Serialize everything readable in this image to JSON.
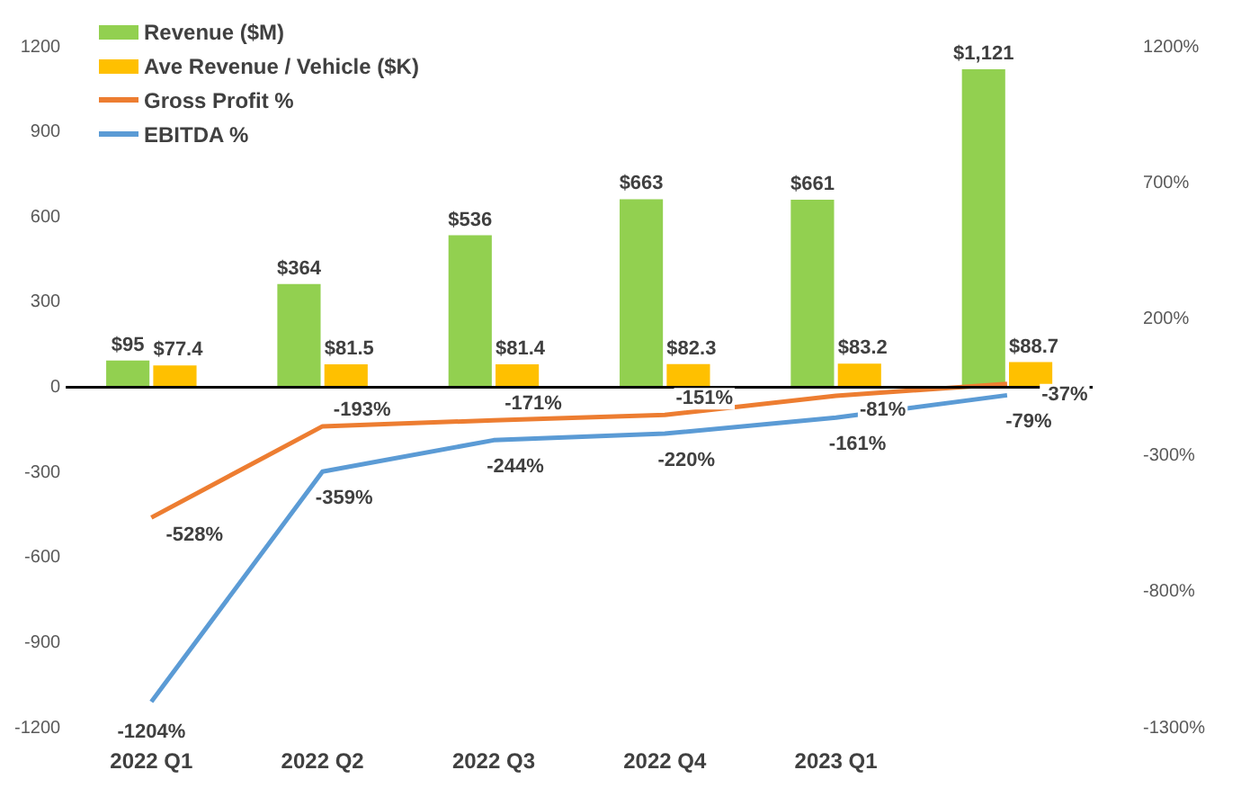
{
  "chart_data": {
    "type": "bar",
    "categories": [
      "2022 Q1",
      "2022 Q2",
      "2022 Q3",
      "2022 Q4",
      "2023 Q1",
      null
    ],
    "series": [
      {
        "name": "Revenue ($M)",
        "type": "bar",
        "color": "#92d050",
        "values": [
          95,
          364,
          536,
          663,
          661,
          1121
        ],
        "value_labels": [
          "$95",
          "$364",
          "$536",
          "$663",
          "$661",
          "$1,121"
        ]
      },
      {
        "name": "Ave Revenue / Vehicle ($K)",
        "type": "bar",
        "color": "#ffc000",
        "values": [
          77.4,
          81.5,
          81.4,
          82.3,
          83.2,
          88.7
        ],
        "value_labels": [
          "$77.4",
          "$81.5",
          "$81.4",
          "$82.3",
          "$83.2",
          "$88.7"
        ]
      },
      {
        "name": "Gross Profit %",
        "type": "line",
        "axis": "y2",
        "color": "#ed7d31",
        "values": [
          -528,
          -193,
          -171,
          -151,
          -81,
          -37
        ],
        "value_labels": [
          "-528%",
          "-193%",
          "-171%",
          "-151%",
          "-81%",
          "-37%"
        ]
      },
      {
        "name": "EBITDA %",
        "type": "line",
        "axis": "y2",
        "color": "#5b9bd5",
        "values": [
          -1204,
          -359,
          -244,
          -220,
          -161,
          -79
        ],
        "value_labels": [
          "-1204%",
          "-359%",
          "-244%",
          "-220%",
          "-161%",
          "-79%"
        ]
      }
    ],
    "ylim": [
      -1200,
      1200
    ],
    "yticks": [
      -1200,
      -900,
      -600,
      -300,
      0,
      300,
      600,
      900,
      1200
    ],
    "y2lim": [
      -1300,
      1200
    ],
    "y2ticks": [
      {
        "value": -1300,
        "label": "-1300%"
      },
      {
        "value": -800,
        "label": "-800%"
      },
      {
        "value": -300,
        "label": "-300%"
      },
      {
        "value": 200,
        "label": "200%"
      },
      {
        "value": 700,
        "label": "700%"
      },
      {
        "value": 1200,
        "label": "1200%"
      }
    ],
    "ref_lines": [
      {
        "axis": "y",
        "value": 0,
        "color": "#000000"
      }
    ],
    "grid": false,
    "legend": "top left",
    "marker": "none"
  }
}
